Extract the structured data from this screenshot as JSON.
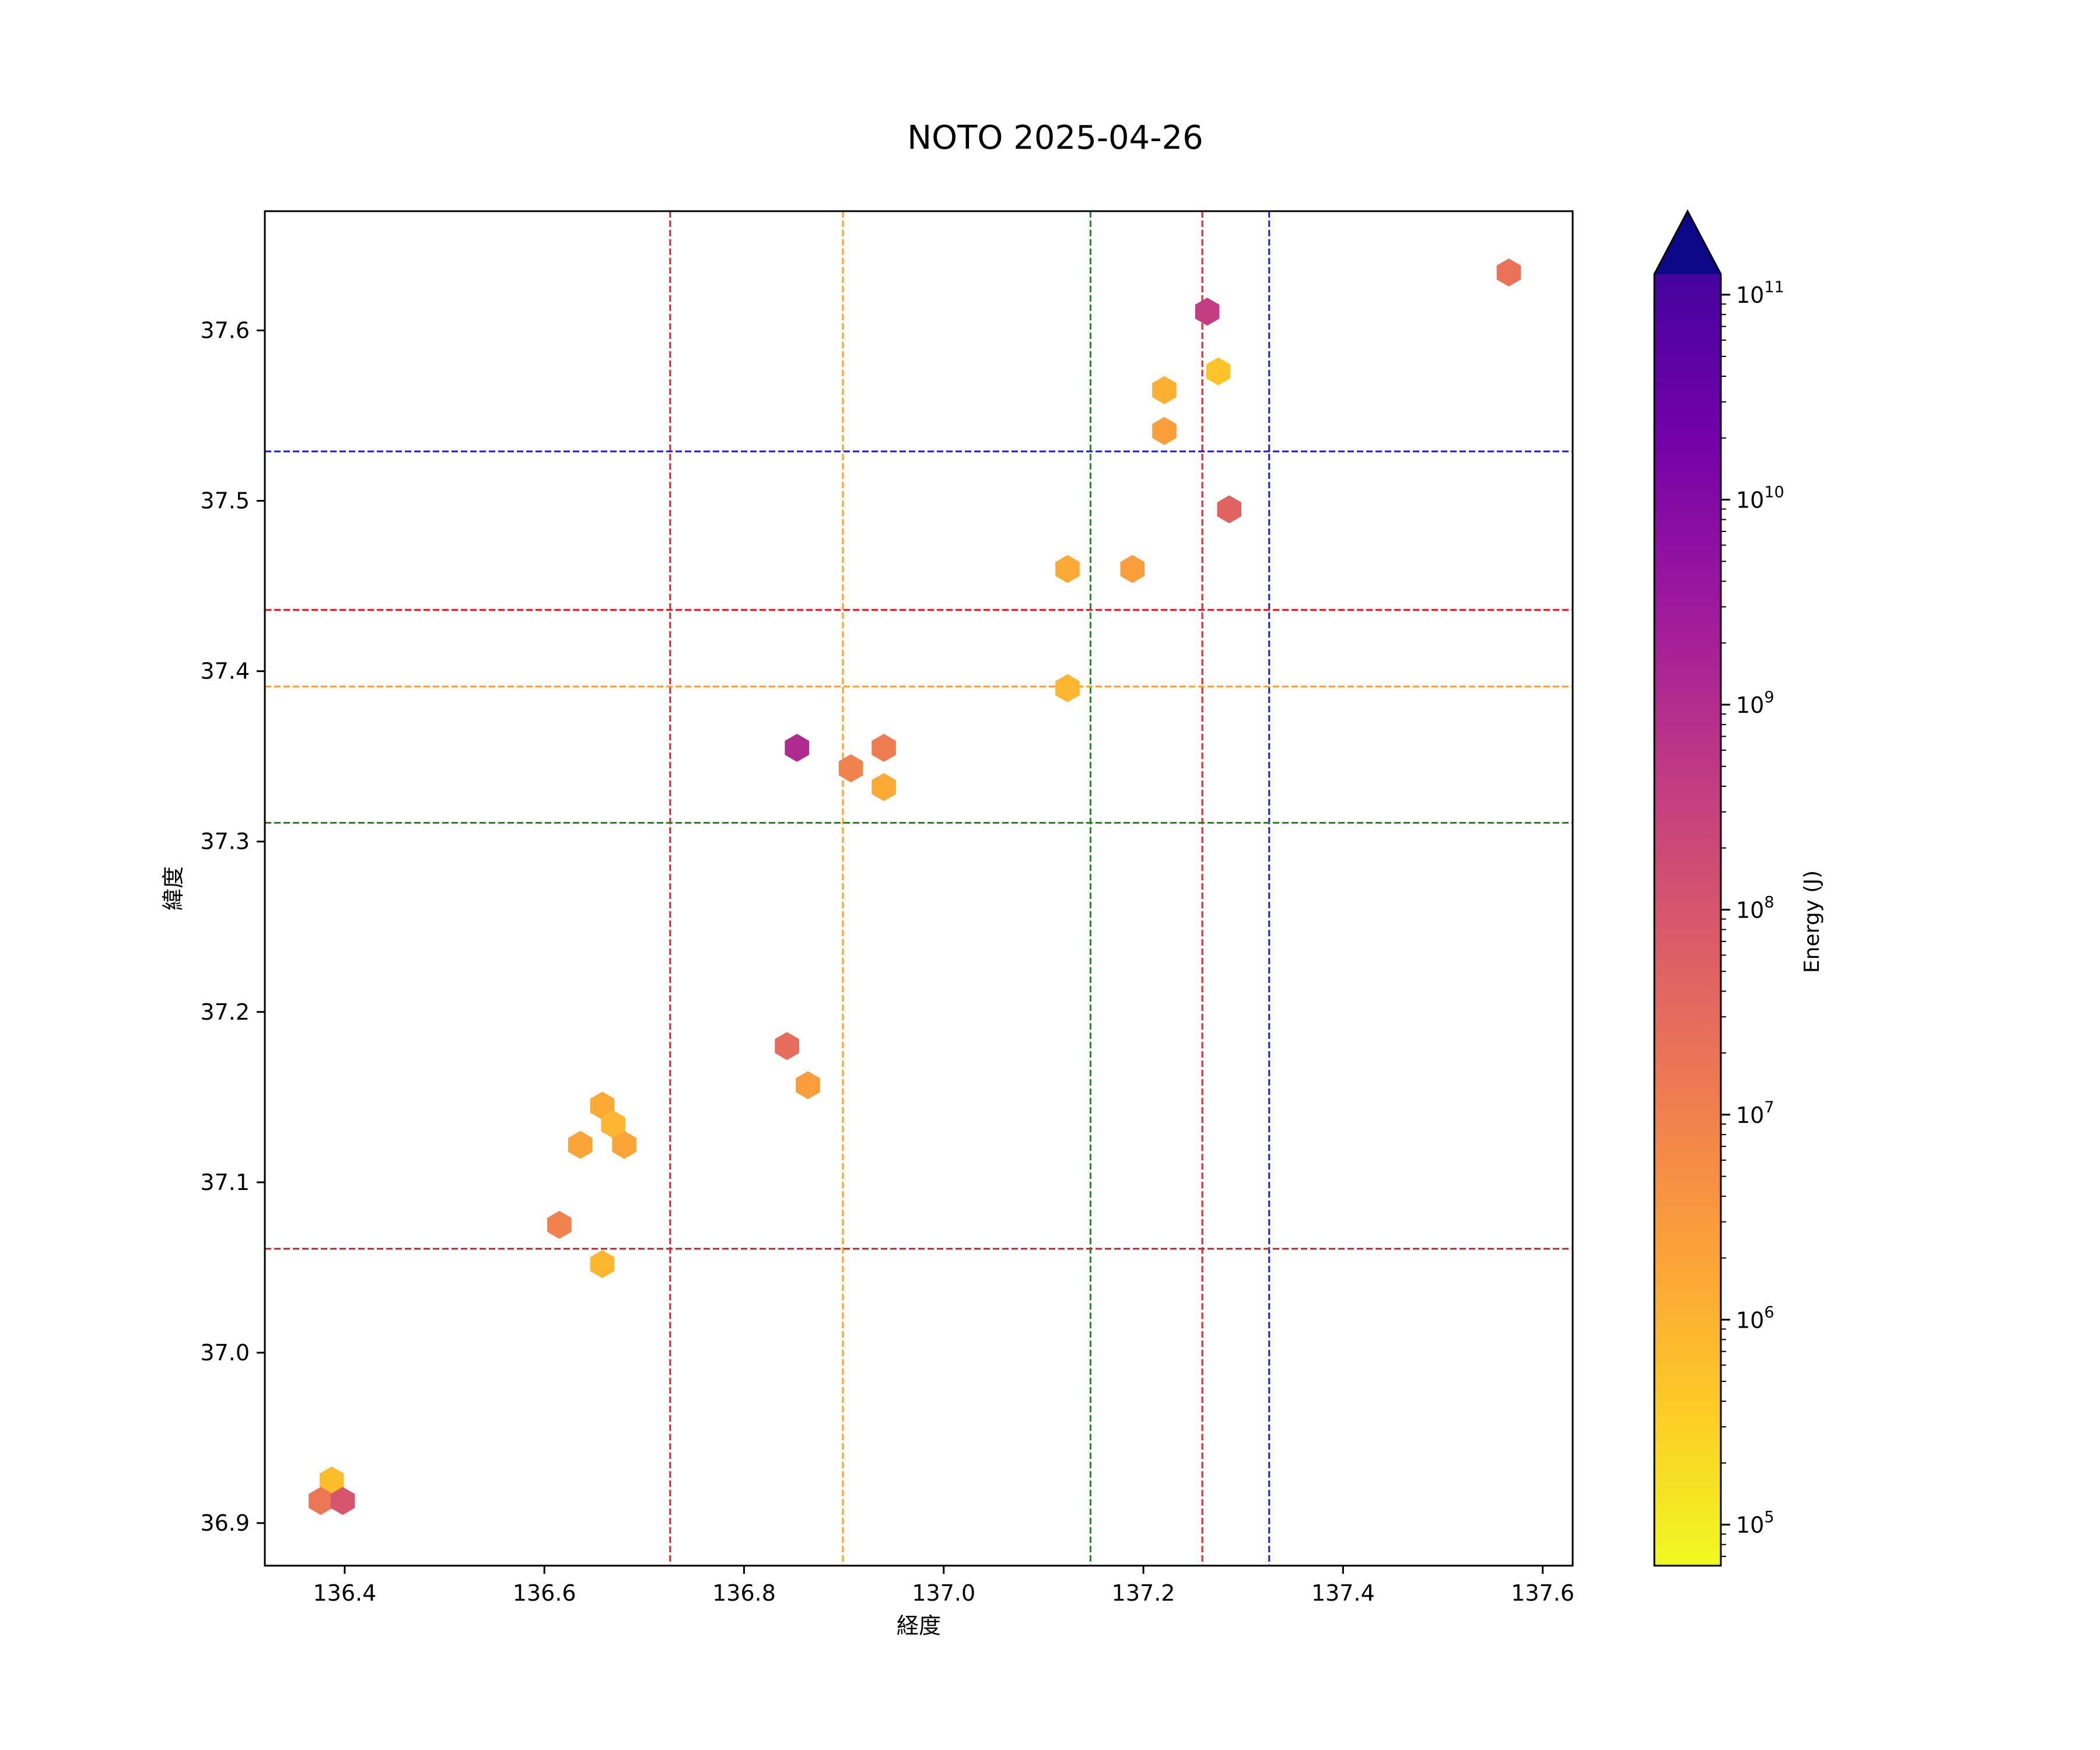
{
  "chart_data": {
    "type": "hexbin",
    "title": "NOTO 2025-04-26",
    "xlabel": "経度",
    "ylabel": "緯度",
    "xlim": [
      136.32,
      137.63
    ],
    "ylim": [
      36.875,
      37.67
    ],
    "x_ticks": [
      "136.4",
      "136.6",
      "136.8",
      "137.0",
      "137.2",
      "137.4",
      "137.6"
    ],
    "y_ticks": [
      "36.9",
      "37.0",
      "37.1",
      "37.2",
      "37.3",
      "37.4",
      "37.5",
      "37.6"
    ],
    "colorbar": {
      "label": "Energy (J)",
      "scale": "log",
      "colormap": "plasma_r",
      "range_log10": [
        4.8,
        11.1
      ],
      "extend": "max",
      "ticks": [
        {
          "base": "10",
          "exp": "5",
          "log10": 5
        },
        {
          "base": "10",
          "exp": "6",
          "log10": 6
        },
        {
          "base": "10",
          "exp": "7",
          "log10": 7
        },
        {
          "base": "10",
          "exp": "8",
          "log10": 8
        },
        {
          "base": "10",
          "exp": "9",
          "log10": 9
        },
        {
          "base": "10",
          "exp": "10",
          "log10": 10
        },
        {
          "base": "10",
          "exp": "11",
          "log10": 11
        }
      ]
    },
    "vertical_lines": [
      {
        "x": 136.726,
        "color": "#d62728"
      },
      {
        "x": 136.899,
        "color": "#ff9f1a"
      },
      {
        "x": 137.147,
        "color": "#1a8c1a"
      },
      {
        "x": 137.259,
        "color": "#e8202a"
      },
      {
        "x": 137.326,
        "color": "#1f1fcc"
      }
    ],
    "horizontal_lines": [
      {
        "y": 37.529,
        "color": "#1f1fcc"
      },
      {
        "y": 37.436,
        "color": "#e8202a"
      },
      {
        "y": 37.391,
        "color": "#ff9f1a"
      },
      {
        "y": 37.311,
        "color": "#1a8c1a"
      },
      {
        "y": 37.061,
        "color": "#c1272d"
      }
    ],
    "points": [
      {
        "x": 137.566,
        "y": 37.634,
        "energy_log10": 7.0
      },
      {
        "x": 137.264,
        "y": 37.611,
        "energy_log10": 8.1
      },
      {
        "x": 137.275,
        "y": 37.576,
        "energy_log10": 5.6
      },
      {
        "x": 137.221,
        "y": 37.565,
        "energy_log10": 5.9
      },
      {
        "x": 137.221,
        "y": 37.541,
        "energy_log10": 6.2
      },
      {
        "x": 137.286,
        "y": 37.495,
        "energy_log10": 7.3
      },
      {
        "x": 137.124,
        "y": 37.46,
        "energy_log10": 6.0
      },
      {
        "x": 137.189,
        "y": 37.46,
        "energy_log10": 6.2
      },
      {
        "x": 137.124,
        "y": 37.39,
        "energy_log10": 5.8
      },
      {
        "x": 136.853,
        "y": 37.355,
        "energy_log10": 8.5
      },
      {
        "x": 136.94,
        "y": 37.355,
        "energy_log10": 6.8
      },
      {
        "x": 136.907,
        "y": 37.343,
        "energy_log10": 6.7
      },
      {
        "x": 136.94,
        "y": 37.332,
        "energy_log10": 6.0
      },
      {
        "x": 136.843,
        "y": 37.18,
        "energy_log10": 7.1
      },
      {
        "x": 136.864,
        "y": 37.157,
        "energy_log10": 6.2
      },
      {
        "x": 136.658,
        "y": 37.145,
        "energy_log10": 6.0
      },
      {
        "x": 136.669,
        "y": 37.134,
        "energy_log10": 5.8
      },
      {
        "x": 136.636,
        "y": 37.122,
        "energy_log10": 6.1
      },
      {
        "x": 136.68,
        "y": 37.122,
        "energy_log10": 6.1
      },
      {
        "x": 136.615,
        "y": 37.075,
        "energy_log10": 6.7
      },
      {
        "x": 136.658,
        "y": 37.052,
        "energy_log10": 5.8
      },
      {
        "x": 136.387,
        "y": 36.925,
        "energy_log10": 5.7
      },
      {
        "x": 136.376,
        "y": 36.913,
        "energy_log10": 6.9
      },
      {
        "x": 136.398,
        "y": 36.913,
        "energy_log10": 7.6
      }
    ]
  }
}
